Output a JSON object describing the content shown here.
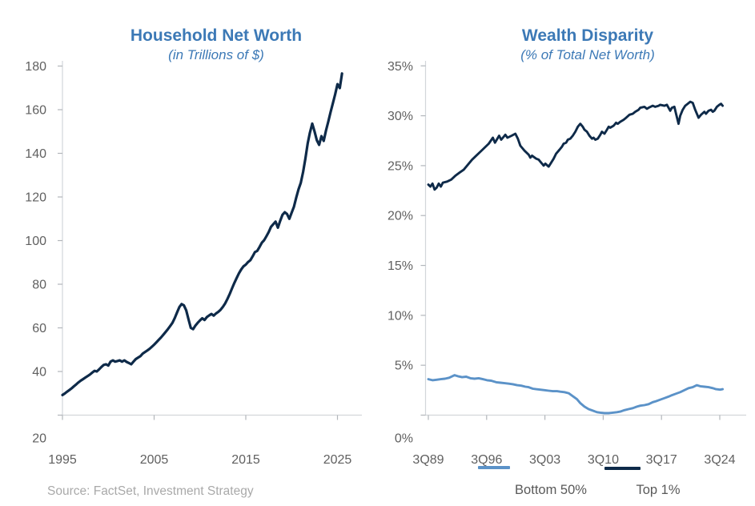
{
  "source_note": "Source: FactSet, Investment Strategy",
  "colors": {
    "title_blue": "#3C79B6",
    "navy": "#0E2A49",
    "light_blue": "#5B92C8",
    "tick_label_gray": "#606060",
    "legend_label_gray": "#595959",
    "source_gray": "#A9A9A9",
    "axis_line_gray": "#D3D6DA",
    "tick_mark_gray": "#B2B6BB",
    "background": "#FFFFFF"
  },
  "chart_data": [
    {
      "type": "line",
      "title": "Household Net Worth",
      "subtitle": "(in Trillions of $)",
      "xlabel": "",
      "ylabel": "Trillions of $",
      "xlim": [
        1995,
        2025.5
      ],
      "ylim": [
        20,
        180
      ],
      "grid": false,
      "legend_position": "none",
      "y_ticks": [
        {
          "v": 180,
          "label": "180"
        },
        {
          "v": 160,
          "label": "160"
        },
        {
          "v": 140,
          "label": "140"
        },
        {
          "v": 120,
          "label": "120"
        },
        {
          "v": 100,
          "label": "100"
        },
        {
          "v": 80,
          "label": "80"
        },
        {
          "v": 60,
          "label": "60"
        },
        {
          "v": 40,
          "label": "40"
        },
        {
          "v": 20,
          "label": "20"
        }
      ],
      "x_ticks": [
        {
          "v": 1995,
          "label": "1995"
        },
        {
          "v": 2005,
          "label": "2005"
        },
        {
          "v": 2015,
          "label": "2015"
        },
        {
          "v": 2025,
          "label": "2025"
        }
      ],
      "series": [
        {
          "name": "Household Net Worth",
          "color": "#0E2A49",
          "x_start": 1995.0,
          "x_step": 0.25,
          "values": [
            29.2,
            29.9,
            30.7,
            31.5,
            32.3,
            33.2,
            34.1,
            35.0,
            35.8,
            36.5,
            37.2,
            37.9,
            38.6,
            39.5,
            40.3,
            40.0,
            41.0,
            42.1,
            43.0,
            43.3,
            42.7,
            44.5,
            45.1,
            44.5,
            44.8,
            45.1,
            44.5,
            45.1,
            44.4,
            43.9,
            43.3,
            44.5,
            45.7,
            46.4,
            47.0,
            48.2,
            48.9,
            49.6,
            50.4,
            51.3,
            52.3,
            53.4,
            54.5,
            55.6,
            56.8,
            58.1,
            59.4,
            60.8,
            62.3,
            64.5,
            67.0,
            69.5,
            70.9,
            70.3,
            68.0,
            64.0,
            60.0,
            59.4,
            61.0,
            62.3,
            63.4,
            64.4,
            63.6,
            64.9,
            65.7,
            66.4,
            65.6,
            66.6,
            67.3,
            68.3,
            69.6,
            71.2,
            73.3,
            75.6,
            78.1,
            80.6,
            82.8,
            85.0,
            86.8,
            88.2,
            89.0,
            90.2,
            91.0,
            92.8,
            94.7,
            95.3,
            97.1,
            99.0,
            100.2,
            102.0,
            103.9,
            106.3,
            107.5,
            108.7,
            105.9,
            109.0,
            111.8,
            113.0,
            112.2,
            110.0,
            112.8,
            115.5,
            119.7,
            123.4,
            126.5,
            131.5,
            137.5,
            144.5,
            149.5,
            153.6,
            150.0,
            146.0,
            143.9,
            147.9,
            145.7,
            150.5,
            154.5,
            158.9,
            163.0,
            167.0,
            171.7,
            169.9,
            176.6
          ]
        }
      ]
    },
    {
      "type": "line",
      "title": "Wealth Disparity",
      "subtitle": "(% of Total Net Worth)",
      "xlabel": "",
      "ylabel": "% of total net worth",
      "xlim": [
        1989.75,
        2025.4
      ],
      "ylim": [
        0,
        35
      ],
      "grid": false,
      "legend_position": "bottom",
      "y_ticks": [
        {
          "v": 35,
          "label": "35%"
        },
        {
          "v": 30,
          "label": "30%"
        },
        {
          "v": 25,
          "label": "25%"
        },
        {
          "v": 20,
          "label": "20%"
        },
        {
          "v": 15,
          "label": "15%"
        },
        {
          "v": 10,
          "label": "10%"
        },
        {
          "v": 5,
          "label": "5%"
        },
        {
          "v": 0,
          "label": "0%"
        }
      ],
      "x_ticks": [
        {
          "v": 1989.75,
          "label": "3Q89"
        },
        {
          "v": 1996.75,
          "label": "3Q96"
        },
        {
          "v": 2003.75,
          "label": "3Q03"
        },
        {
          "v": 2010.75,
          "label": "3Q10"
        },
        {
          "v": 2017.75,
          "label": "3Q17"
        },
        {
          "v": 2024.75,
          "label": "3Q24"
        }
      ],
      "series": [
        {
          "name": "Top 1%",
          "color": "#0E2A49",
          "points": [
            [
              1989.75,
              23.1
            ],
            [
              1990.0,
              22.9
            ],
            [
              1990.25,
              23.2
            ],
            [
              1990.5,
              22.6
            ],
            [
              1990.75,
              22.8
            ],
            [
              1991.0,
              23.2
            ],
            [
              1991.25,
              22.9
            ],
            [
              1991.5,
              23.3
            ],
            [
              1992.0,
              23.4
            ],
            [
              1992.5,
              23.6
            ],
            [
              1993.0,
              24.0
            ],
            [
              1993.5,
              24.3
            ],
            [
              1994.0,
              24.6
            ],
            [
              1994.5,
              25.1
            ],
            [
              1995.0,
              25.6
            ],
            [
              1995.5,
              26.0
            ],
            [
              1996.0,
              26.4
            ],
            [
              1996.5,
              26.8
            ],
            [
              1997.0,
              27.2
            ],
            [
              1997.5,
              27.8
            ],
            [
              1997.75,
              27.3
            ],
            [
              1998.25,
              28.0
            ],
            [
              1998.5,
              27.6
            ],
            [
              1999.0,
              28.1
            ],
            [
              1999.25,
              27.8
            ],
            [
              1999.75,
              28.0
            ],
            [
              2000.2,
              28.2
            ],
            [
              2000.5,
              27.7
            ],
            [
              2000.8,
              27.0
            ],
            [
              2001.3,
              26.5
            ],
            [
              2001.8,
              26.1
            ],
            [
              2002.0,
              25.8
            ],
            [
              2002.2,
              26.0
            ],
            [
              2002.7,
              25.7
            ],
            [
              2003.0,
              25.6
            ],
            [
              2003.4,
              25.2
            ],
            [
              2003.6,
              25.0
            ],
            [
              2003.8,
              25.2
            ],
            [
              2004.2,
              24.9
            ],
            [
              2004.5,
              25.3
            ],
            [
              2004.8,
              25.7
            ],
            [
              2005.1,
              26.2
            ],
            [
              2005.5,
              26.6
            ],
            [
              2005.8,
              26.9
            ],
            [
              2006.0,
              27.2
            ],
            [
              2006.3,
              27.3
            ],
            [
              2006.5,
              27.6
            ],
            [
              2006.8,
              27.7
            ],
            [
              2007.1,
              28.0
            ],
            [
              2007.4,
              28.4
            ],
            [
              2007.7,
              28.9
            ],
            [
              2008.0,
              29.2
            ],
            [
              2008.3,
              28.9
            ],
            [
              2008.5,
              28.6
            ],
            [
              2008.8,
              28.4
            ],
            [
              2009.1,
              28.0
            ],
            [
              2009.4,
              27.7
            ],
            [
              2009.6,
              27.8
            ],
            [
              2009.8,
              27.6
            ],
            [
              2010.1,
              27.7
            ],
            [
              2010.4,
              28.1
            ],
            [
              2010.6,
              28.4
            ],
            [
              2010.9,
              28.2
            ],
            [
              2011.2,
              28.6
            ],
            [
              2011.4,
              28.9
            ],
            [
              2011.6,
              28.8
            ],
            [
              2012.0,
              29.0
            ],
            [
              2012.3,
              29.3
            ],
            [
              2012.5,
              29.2
            ],
            [
              2012.8,
              29.4
            ],
            [
              2013.2,
              29.6
            ],
            [
              2013.5,
              29.8
            ],
            [
              2013.9,
              30.1
            ],
            [
              2014.3,
              30.2
            ],
            [
              2014.6,
              30.4
            ],
            [
              2015.0,
              30.6
            ],
            [
              2015.2,
              30.8
            ],
            [
              2015.7,
              30.9
            ],
            [
              2016.0,
              30.7
            ],
            [
              2016.2,
              30.8
            ],
            [
              2016.7,
              31.0
            ],
            [
              2017.0,
              30.9
            ],
            [
              2017.4,
              31.0
            ],
            [
              2017.6,
              31.1
            ],
            [
              2018.1,
              31.0
            ],
            [
              2018.4,
              31.1
            ],
            [
              2018.8,
              30.5
            ],
            [
              2019.0,
              30.8
            ],
            [
              2019.3,
              30.9
            ],
            [
              2019.5,
              30.2
            ],
            [
              2019.8,
              29.2
            ],
            [
              2020.0,
              30.0
            ],
            [
              2020.3,
              30.6
            ],
            [
              2020.6,
              31.0
            ],
            [
              2020.9,
              31.2
            ],
            [
              2021.2,
              31.4
            ],
            [
              2021.5,
              31.3
            ],
            [
              2021.8,
              30.6
            ],
            [
              2022.2,
              29.8
            ],
            [
              2022.5,
              30.1
            ],
            [
              2022.9,
              30.4
            ],
            [
              2023.1,
              30.2
            ],
            [
              2023.4,
              30.5
            ],
            [
              2023.7,
              30.6
            ],
            [
              2023.9,
              30.4
            ],
            [
              2024.1,
              30.5
            ],
            [
              2024.4,
              30.9
            ],
            [
              2024.7,
              31.1
            ],
            [
              2024.9,
              31.2
            ],
            [
              2025.1,
              31.0
            ]
          ]
        },
        {
          "name": "Bottom 50%",
          "color": "#5B92C8",
          "points": [
            [
              1989.75,
              3.6
            ],
            [
              1990.25,
              3.5
            ],
            [
              1990.75,
              3.55
            ],
            [
              1991.25,
              3.6
            ],
            [
              1991.75,
              3.65
            ],
            [
              1992.25,
              3.75
            ],
            [
              1992.9,
              4.0
            ],
            [
              1993.3,
              3.9
            ],
            [
              1993.8,
              3.8
            ],
            [
              1994.3,
              3.85
            ],
            [
              1994.8,
              3.7
            ],
            [
              1995.3,
              3.65
            ],
            [
              1995.8,
              3.7
            ],
            [
              1996.3,
              3.6
            ],
            [
              1996.8,
              3.5
            ],
            [
              1997.3,
              3.45
            ],
            [
              1997.9,
              3.3
            ],
            [
              1998.4,
              3.25
            ],
            [
              1998.9,
              3.2
            ],
            [
              1999.4,
              3.15
            ],
            [
              1999.9,
              3.1
            ],
            [
              2000.4,
              3.0
            ],
            [
              2000.9,
              2.95
            ],
            [
              2001.4,
              2.85
            ],
            [
              2001.8,
              2.8
            ],
            [
              2002.3,
              2.65
            ],
            [
              2002.7,
              2.6
            ],
            [
              2003.2,
              2.55
            ],
            [
              2003.7,
              2.5
            ],
            [
              2004.2,
              2.45
            ],
            [
              2004.7,
              2.4
            ],
            [
              2005.2,
              2.4
            ],
            [
              2005.6,
              2.35
            ],
            [
              2006.1,
              2.3
            ],
            [
              2006.6,
              2.2
            ],
            [
              2007.1,
              1.9
            ],
            [
              2007.6,
              1.6
            ],
            [
              2008.0,
              1.2
            ],
            [
              2008.5,
              0.85
            ],
            [
              2009.0,
              0.6
            ],
            [
              2009.5,
              0.45
            ],
            [
              2010.0,
              0.3
            ],
            [
              2010.4,
              0.25
            ],
            [
              2010.9,
              0.2
            ],
            [
              2011.4,
              0.2
            ],
            [
              2011.9,
              0.25
            ],
            [
              2012.4,
              0.3
            ],
            [
              2012.8,
              0.35
            ],
            [
              2013.3,
              0.5
            ],
            [
              2013.8,
              0.6
            ],
            [
              2014.3,
              0.7
            ],
            [
              2014.8,
              0.85
            ],
            [
              2015.2,
              0.95
            ],
            [
              2015.7,
              1.0
            ],
            [
              2016.2,
              1.1
            ],
            [
              2016.7,
              1.3
            ],
            [
              2017.1,
              1.4
            ],
            [
              2017.6,
              1.55
            ],
            [
              2018.1,
              1.7
            ],
            [
              2018.6,
              1.85
            ],
            [
              2019.0,
              2.0
            ],
            [
              2019.5,
              2.15
            ],
            [
              2020.0,
              2.3
            ],
            [
              2020.5,
              2.5
            ],
            [
              2021.0,
              2.7
            ],
            [
              2021.5,
              2.8
            ],
            [
              2022.0,
              3.0
            ],
            [
              2022.4,
              2.9
            ],
            [
              2022.9,
              2.85
            ],
            [
              2023.4,
              2.8
            ],
            [
              2023.9,
              2.7
            ],
            [
              2024.3,
              2.6
            ],
            [
              2024.8,
              2.55
            ],
            [
              2025.1,
              2.6
            ]
          ]
        }
      ]
    }
  ],
  "legend": {
    "bottom50_label": "Bottom 50%",
    "top1_label": "Top 1%"
  }
}
